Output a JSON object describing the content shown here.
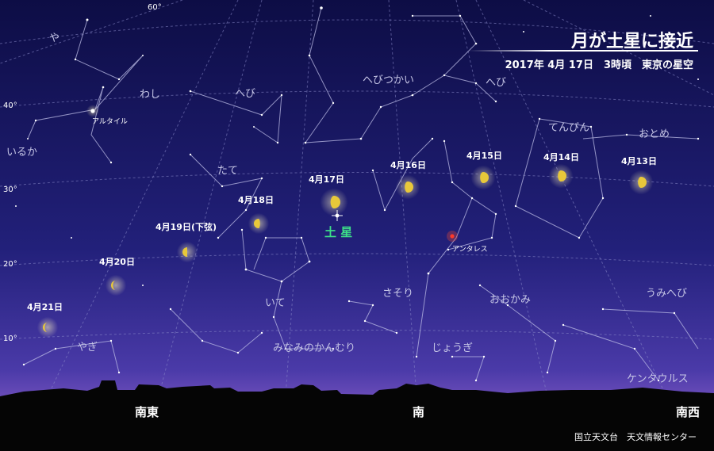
{
  "title": "月が土星に接近",
  "subtitle": "2017年 4月 17日　3時頃　東京の星空",
  "credit": "国立天文台　天文情報センター",
  "colors": {
    "sky_top": "#0d0d45",
    "sky_mid": "#22207a",
    "horizon": "#a86fd8",
    "moon": "#e8c83a",
    "saturn_label": "#3de088",
    "antares": "#ff3a2a"
  },
  "altitude_labels": [
    "60°",
    "40°",
    "30°",
    "20°",
    "10°"
  ],
  "directions": {
    "southeast": "南東",
    "south": "南",
    "southwest": "南西"
  },
  "constellations": [
    "や",
    "わし",
    "へび",
    "へびつかい",
    "へび",
    "いるか",
    "たて",
    "てんびん",
    "おとめ",
    "いて",
    "さそり",
    "おおかみ",
    "うみへび",
    "やぎ",
    "みなみのかんむり",
    "じょうぎ",
    "ケンタウルス"
  ],
  "stars": {
    "altair": "アルタイル",
    "antares": "アンタレス"
  },
  "saturn": "土 星",
  "moons": [
    {
      "date": "4月17日",
      "phase": "gibbous"
    },
    {
      "date": "4月16日",
      "phase": "gibbous"
    },
    {
      "date": "4月15日",
      "phase": "gibbous"
    },
    {
      "date": "4月14日",
      "phase": "gibbous"
    },
    {
      "date": "4月13日",
      "phase": "gibbous"
    },
    {
      "date": "4月18日",
      "phase": "gibbous-waning"
    },
    {
      "date": "4月19日(下弦)",
      "phase": "last-quarter"
    },
    {
      "date": "4月20日",
      "phase": "crescent"
    },
    {
      "date": "4月21日",
      "phase": "crescent"
    }
  ]
}
